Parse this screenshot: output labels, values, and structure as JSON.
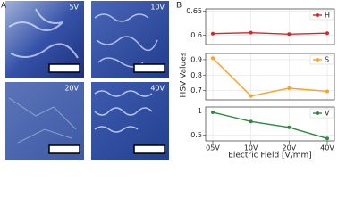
{
  "panel_labels": [
    "A",
    "B"
  ],
  "image_labels": [
    "5V",
    "10V",
    "20V",
    "40V"
  ],
  "chart_data": [
    {
      "type": "line",
      "series": [
        {
          "name": "H",
          "color": "#d62728",
          "values": [
            0.603,
            0.605,
            0.602,
            0.604
          ]
        }
      ],
      "ylim": [
        0.58,
        0.655
      ],
      "yticks": [
        0.6,
        0.65
      ]
    },
    {
      "type": "line",
      "ylabel": "HSV Values",
      "series": [
        {
          "name": "S",
          "color": "#ff9f1a",
          "values": [
            0.91,
            0.665,
            0.715,
            0.695
          ]
        }
      ],
      "ylim": [
        0.64,
        0.94
      ],
      "yticks": [
        0.7,
        0.8,
        0.9
      ]
    },
    {
      "type": "line",
      "xlabel": "Electric Field [V/mm]",
      "categories": [
        "05V",
        "10V",
        "20V",
        "40V"
      ],
      "series": [
        {
          "name": "V",
          "color": "#2a8a3e",
          "values": [
            0.97,
            0.78,
            0.66,
            0.43
          ]
        }
      ],
      "ylim": [
        0.38,
        1.08
      ],
      "yticks": [
        0.5,
        1.0
      ]
    }
  ]
}
